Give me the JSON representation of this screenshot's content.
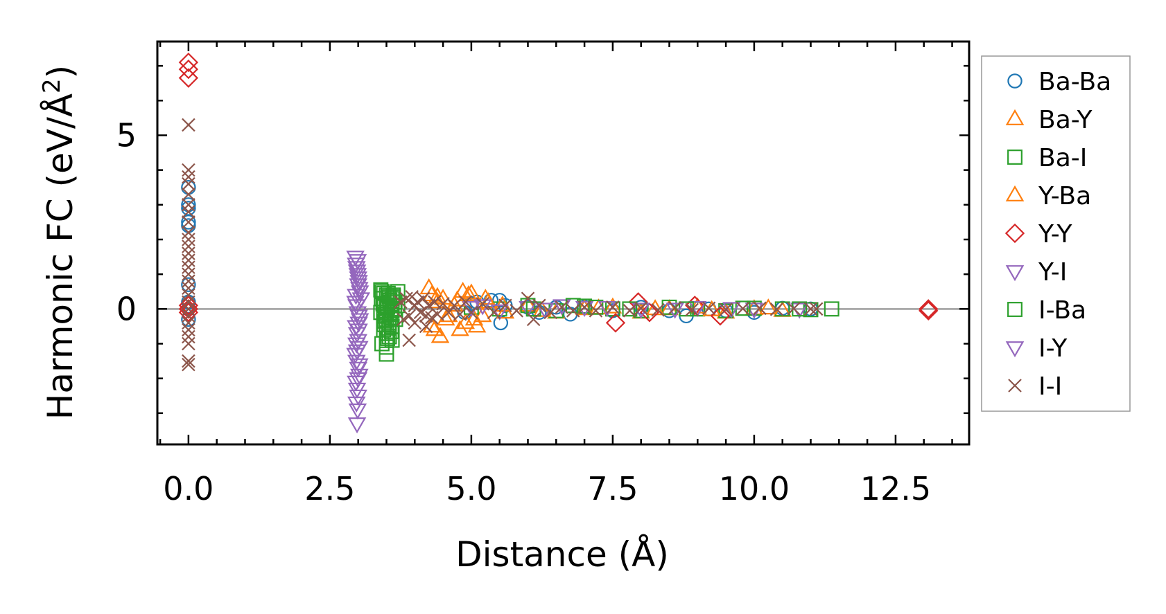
{
  "chart_data": {
    "type": "scatter",
    "title": "",
    "xlabel": "Distance (Å)",
    "ylabel_main": "Harmonic FC (eV/Å",
    "ylabel_sup": "2",
    "ylabel_end": ")",
    "xlim": [
      -0.55,
      13.8
    ],
    "ylim": [
      -3.9,
      7.7
    ],
    "xticks": [
      0,
      2.5,
      5,
      7.5,
      10,
      12.5
    ],
    "xtick_labels": [
      "0.0",
      "2.5",
      "5.0",
      "7.5",
      "10.0",
      "12.5"
    ],
    "yticks": [
      0,
      5
    ],
    "ytick_labels": [
      "0",
      "5"
    ],
    "legend_position": "outside-right",
    "zero_line": true,
    "series": [
      {
        "name": "Ba-Ba",
        "marker": "circle",
        "color": "#1f77b4",
        "x": [
          0,
          0,
          0,
          0,
          0,
          0,
          0,
          0,
          4.88,
          5.0,
          5.1,
          5.35,
          5.5,
          5.52,
          5.6,
          6.0,
          6.2,
          6.5,
          6.75,
          7.0,
          7.5,
          8.0,
          8.5,
          8.8,
          9.2,
          9.5,
          10.0,
          10.5,
          11.0
        ],
        "y": [
          3.5,
          3.0,
          2.9,
          2.5,
          2.4,
          0.7,
          0.2,
          -0.3,
          -0.1,
          0.15,
          0.2,
          0.25,
          0.25,
          -0.4,
          0.1,
          0.05,
          -0.1,
          0.05,
          -0.15,
          0.05,
          -0.05,
          0.05,
          -0.05,
          -0.2,
          0.0,
          -0.05,
          -0.1,
          0.02,
          0.0
        ]
      },
      {
        "name": "Ba-Y",
        "marker": "triangle-up",
        "color": "#ff7f0e",
        "x": [
          4.25,
          4.3,
          4.35,
          4.4,
          4.45,
          4.5,
          4.6,
          4.7,
          4.8,
          4.85,
          4.9,
          5.0,
          5.1,
          5.2,
          5.3,
          5.6,
          6.0,
          6.5,
          7.0,
          7.5,
          8.0,
          8.5,
          9.0,
          9.5,
          10.0,
          10.5
        ],
        "y": [
          0.6,
          0.4,
          -0.6,
          0.2,
          -0.8,
          0.3,
          -0.2,
          0.1,
          -0.6,
          0.5,
          -0.4,
          0.45,
          -0.5,
          -0.2,
          0.2,
          -0.1,
          0.1,
          -0.1,
          0.0,
          0.05,
          -0.1,
          0.0,
          0.05,
          -0.1,
          0.0,
          -0.05
        ]
      },
      {
        "name": "Ba-I",
        "marker": "square",
        "color": "#2ca02c",
        "x": [
          3.4,
          3.42,
          3.45,
          3.5,
          3.55,
          3.6,
          3.65,
          3.7,
          3.4,
          3.45,
          3.5,
          3.55,
          3.6,
          3.45,
          3.5,
          3.55,
          3.6,
          3.42,
          3.5,
          3.58,
          3.44,
          3.52,
          3.6,
          3.48,
          3.56,
          3.46,
          3.54,
          3.5,
          3.62,
          3.66,
          3.7,
          3.5,
          3.56,
          5.0,
          5.5,
          6.0,
          6.5,
          7.0,
          7.5,
          8.0,
          8.5,
          9.0,
          9.5,
          10.0,
          10.5,
          11.0,
          11.37
        ],
        "y": [
          0.55,
          0.5,
          0.45,
          0.4,
          0.35,
          0.3,
          0.2,
          0.1,
          -0.1,
          -0.2,
          -0.3,
          -0.4,
          -0.5,
          -0.6,
          -0.7,
          -0.8,
          -0.9,
          -1.0,
          -1.3,
          -0.25,
          0.15,
          0.05,
          -0.05,
          -0.15,
          0.25,
          -0.45,
          -0.55,
          0.0,
          0.4,
          -0.3,
          0.5,
          -1.1,
          0.2,
          0.05,
          0.0,
          0.1,
          -0.05,
          0.08,
          0.0,
          -0.05,
          0.05,
          0.0,
          -0.05,
          0.02,
          0.0,
          -0.02,
          0.0
        ]
      },
      {
        "name": "Y-Ba",
        "marker": "triangle-up",
        "color": "#ff7f0e",
        "x": [
          4.3,
          4.4,
          4.55,
          4.75,
          4.95,
          5.05,
          5.25,
          5.55,
          6.25,
          7.25,
          8.25,
          9.25,
          10.25
        ],
        "y": [
          -0.5,
          0.35,
          -0.3,
          0.25,
          0.4,
          -0.3,
          0.3,
          0.1,
          -0.05,
          0.02,
          0.0,
          -0.03,
          0.02
        ]
      },
      {
        "name": "Y-Y",
        "marker": "diamond",
        "color": "#d62728",
        "x": [
          0,
          0,
          0,
          0,
          0,
          0,
          7.55,
          7.95,
          8.15,
          8.95,
          9.4,
          13.08,
          13.08
        ],
        "y": [
          7.1,
          6.9,
          6.65,
          0.1,
          0.0,
          -0.1,
          -0.4,
          0.2,
          -0.1,
          0.1,
          -0.2,
          0.0,
          -0.05
        ]
      },
      {
        "name": "Y-I",
        "marker": "triangle-down",
        "color": "#9467bd",
        "x": [
          2.95,
          2.96,
          2.97,
          2.98,
          2.99,
          3.0,
          3.01,
          3.02,
          3.03,
          3.05,
          2.95,
          2.97,
          2.99,
          3.01,
          3.03,
          2.96,
          2.98,
          3.0,
          3.02,
          2.95,
          2.97,
          3.0,
          3.02,
          2.96,
          2.98,
          3.0,
          2.97,
          2.99,
          2.98,
          2.96,
          3.01,
          2.97,
          5.0,
          5.5,
          6.0,
          6.6,
          7.0,
          8.0,
          9.0,
          10.0,
          10.8
        ],
        "y": [
          1.5,
          1.3,
          1.2,
          1.1,
          1.0,
          0.9,
          0.8,
          0.6,
          0.5,
          0.3,
          0.2,
          0.1,
          -0.1,
          -0.2,
          -0.3,
          -0.5,
          -0.7,
          -0.9,
          -1.1,
          -1.3,
          -1.5,
          -1.7,
          -1.9,
          -2.1,
          -2.3,
          -2.5,
          -2.7,
          -2.9,
          -3.3,
          0.4,
          -0.6,
          -1.0,
          0.05,
          -0.05,
          0.05,
          0.1,
          0.05,
          0.0,
          0.05,
          0.0,
          0.0
        ]
      },
      {
        "name": "I-Ba",
        "marker": "square",
        "color": "#2ca02c",
        "x": [
          3.41,
          3.47,
          3.53,
          3.59,
          3.64,
          3.52,
          3.46,
          3.58,
          3.62,
          3.5,
          6.1,
          6.8,
          7.2,
          7.8,
          8.8,
          9.8,
          10.8
        ],
        "y": [
          0.3,
          -0.35,
          0.45,
          -0.65,
          0.0,
          -0.85,
          0.1,
          -0.15,
          0.35,
          0.05,
          0.0,
          0.1,
          0.05,
          0.0,
          0.0,
          0.02,
          0.0
        ]
      },
      {
        "name": "I-Y",
        "marker": "triangle-down",
        "color": "#9467bd",
        "x": [
          2.99,
          3.0,
          3.01,
          2.98,
          3.0,
          3.02,
          5.2,
          6.3,
          7.4,
          8.6,
          9.6
        ],
        "y": [
          1.4,
          0.7,
          -0.4,
          -1.2,
          -2.0,
          -1.6,
          0.1,
          0.0,
          0.05,
          0.0,
          0.02
        ]
      },
      {
        "name": "I-I",
        "marker": "x",
        "color": "#8c564b",
        "x": [
          0,
          0,
          0,
          0,
          0,
          0,
          0,
          0,
          0,
          0,
          0,
          0,
          0,
          0,
          0,
          0,
          0,
          0,
          0,
          0,
          0,
          0,
          0,
          0,
          0,
          0,
          0,
          3.75,
          3.8,
          3.85,
          3.9,
          3.95,
          4.0,
          4.05,
          4.1,
          4.15,
          4.2,
          4.25,
          4.3,
          4.35,
          4.4,
          4.5,
          4.6,
          4.7,
          4.8,
          4.9,
          5.0,
          5.2,
          5.4,
          5.6,
          5.8,
          6.0,
          6.1,
          6.2,
          6.4,
          6.6,
          6.8,
          7.0,
          7.2,
          7.5,
          7.8,
          8.0,
          8.3,
          8.6,
          8.9,
          9.2,
          9.5,
          9.8,
          10.1,
          10.4,
          10.7,
          11.0,
          11.1,
          3.9,
          4.0,
          4.2
        ],
        "y": [
          5.3,
          4.0,
          3.8,
          3.6,
          3.3,
          3.0,
          2.8,
          2.5,
          2.2,
          2.0,
          1.8,
          1.6,
          1.4,
          1.2,
          1.0,
          0.8,
          0.6,
          0.4,
          0.2,
          0.0,
          -0.2,
          -0.4,
          -0.6,
          -0.8,
          -1.0,
          -1.5,
          -1.6,
          0.2,
          -0.3,
          0.3,
          -0.2,
          0.35,
          -0.4,
          0.2,
          -0.1,
          0.3,
          -0.2,
          0.1,
          -0.25,
          0.2,
          -0.15,
          0.15,
          -0.1,
          0.1,
          -0.15,
          0.2,
          -0.1,
          0.15,
          -0.1,
          0.1,
          -0.05,
          0.3,
          -0.3,
          0.1,
          -0.1,
          0.05,
          -0.05,
          0.05,
          -0.05,
          0.05,
          -0.05,
          0.02,
          -0.03,
          0.03,
          -0.02,
          0.02,
          -0.02,
          0.01,
          0.02,
          -0.01,
          0.01,
          0.0,
          0.0,
          -0.9,
          0.1,
          -0.5
        ]
      }
    ]
  }
}
